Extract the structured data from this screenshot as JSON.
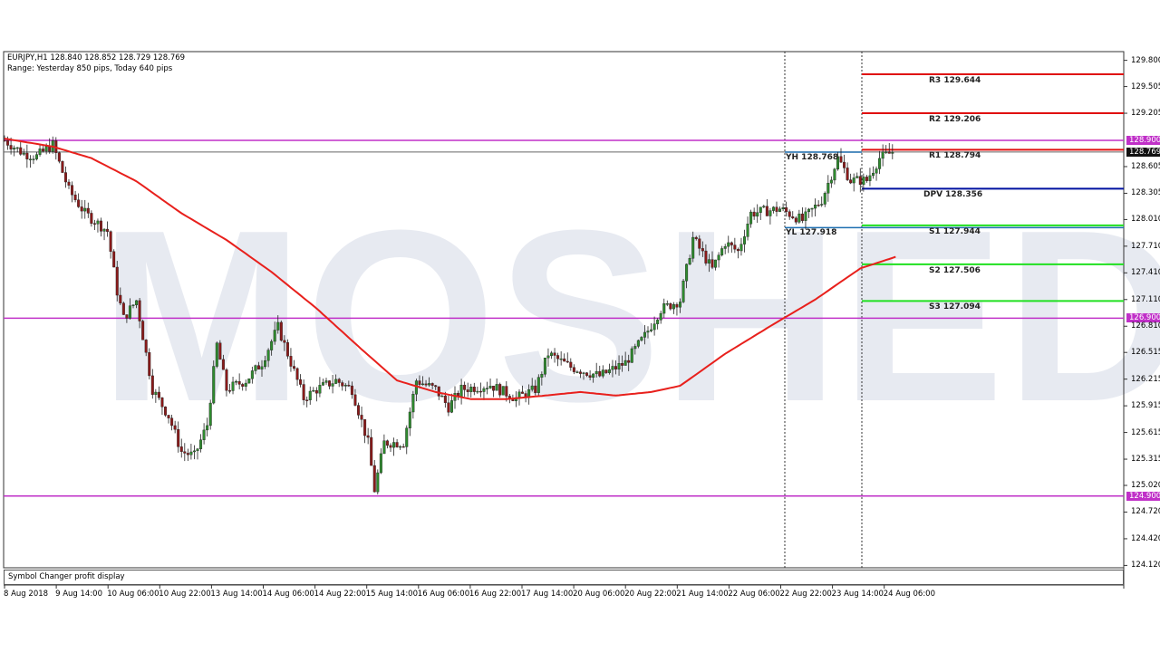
{
  "header": {
    "symbol_line": "EURJPY,H1  128.840 128.852 128.729 128.769",
    "range_line": "Range: Yesterday 850 pips, Today 640 pips"
  },
  "watermark": "MOSHED",
  "status_bar": "Symbol Changer profit display",
  "colors": {
    "bull": "#2e8b2e",
    "bear": "#8b1a1a",
    "ma": "#e8201c",
    "magenta": "#c030c8",
    "resistance": "#e01010",
    "pivot": "#0010a0",
    "support": "#20e020",
    "yl": "#1e6fb0",
    "current": "#444444"
  },
  "chart_data": {
    "type": "candlestick",
    "symbol": "EURJPY",
    "timeframe": "H1",
    "ylim": [
      124.12,
      129.8
    ],
    "y_ticks": [
      "129.800",
      "129.505",
      "129.205",
      "128.605",
      "128.305",
      "128.010",
      "127.710",
      "127.410",
      "127.110",
      "126.810",
      "126.515",
      "126.215",
      "125.915",
      "125.615",
      "125.315",
      "125.020",
      "124.720",
      "124.420",
      "124.120"
    ],
    "x_ticks": [
      "8 Aug 2018",
      "9 Aug 14:00",
      "10 Aug 06:00",
      "10 Aug 22:00",
      "13 Aug 14:00",
      "14 Aug 06:00",
      "14 Aug 22:00",
      "15 Aug 14:00",
      "16 Aug 06:00",
      "16 Aug 22:00",
      "17 Aug 14:00",
      "20 Aug 06:00",
      "20 Aug 22:00",
      "21 Aug 14:00",
      "22 Aug 06:00",
      "22 Aug 22:00",
      "23 Aug 14:00",
      "24 Aug 06:00"
    ],
    "close_path_bar_price": [
      [
        0,
        128.9
      ],
      [
        6,
        128.75
      ],
      [
        10,
        128.72
      ],
      [
        15,
        128.85
      ],
      [
        20,
        128.34
      ],
      [
        25,
        128.08
      ],
      [
        32,
        127.88
      ],
      [
        35,
        127.2
      ],
      [
        37,
        126.9
      ],
      [
        41,
        127.1
      ],
      [
        44,
        126.5
      ],
      [
        46,
        126.1
      ],
      [
        51,
        125.8
      ],
      [
        55,
        125.4
      ],
      [
        59,
        125.35
      ],
      [
        63,
        125.7
      ],
      [
        66,
        126.6
      ],
      [
        69,
        126.1
      ],
      [
        75,
        126.2
      ],
      [
        80,
        126.4
      ],
      [
        85,
        126.8
      ],
      [
        89,
        126.4
      ],
      [
        93,
        126.0
      ],
      [
        97,
        126.1
      ],
      [
        103,
        126.2
      ],
      [
        108,
        126.1
      ],
      [
        113,
        125.5
      ],
      [
        115,
        124.97
      ],
      [
        118,
        125.5
      ],
      [
        124,
        125.5
      ],
      [
        128,
        126.2
      ],
      [
        134,
        126.1
      ],
      [
        138,
        125.9
      ],
      [
        142,
        126.1
      ],
      [
        151,
        126.15
      ],
      [
        159,
        126.0
      ],
      [
        165,
        126.1
      ],
      [
        169,
        126.5
      ],
      [
        176,
        126.35
      ],
      [
        185,
        126.25
      ],
      [
        193,
        126.4
      ],
      [
        199,
        126.7
      ],
      [
        204,
        127.0
      ],
      [
        210,
        127.1
      ],
      [
        214,
        127.8
      ],
      [
        220,
        127.45
      ],
      [
        224,
        127.75
      ],
      [
        228,
        127.65
      ],
      [
        232,
        128.08
      ],
      [
        241,
        128.13
      ],
      [
        248,
        128.0
      ],
      [
        254,
        128.23
      ],
      [
        259,
        128.7
      ],
      [
        263,
        128.45
      ],
      [
        268,
        128.45
      ],
      [
        272,
        128.7
      ],
      [
        276,
        128.769
      ]
    ],
    "moving_average_bar_price": [
      [
        0,
        128.92
      ],
      [
        15,
        128.83
      ],
      [
        27,
        128.7
      ],
      [
        41,
        128.44
      ],
      [
        55,
        128.08
      ],
      [
        69,
        127.78
      ],
      [
        83,
        127.42
      ],
      [
        97,
        127.01
      ],
      [
        111,
        126.55
      ],
      [
        122,
        126.2
      ],
      [
        134,
        126.07
      ],
      [
        145,
        125.99
      ],
      [
        156,
        125.99
      ],
      [
        168,
        126.03
      ],
      [
        179,
        126.07
      ],
      [
        190,
        126.03
      ],
      [
        201,
        126.07
      ],
      [
        210,
        126.14
      ],
      [
        224,
        126.5
      ],
      [
        238,
        126.81
      ],
      [
        252,
        127.11
      ],
      [
        266,
        127.46
      ],
      [
        277,
        127.59
      ]
    ],
    "horizontal_levels": [
      {
        "price": 128.9,
        "label": "128.900"
      },
      {
        "price": 126.9,
        "label": "126.900"
      },
      {
        "price": 124.9,
        "label": "124.900"
      }
    ],
    "current_price": {
      "price": 128.769,
      "label": "128.769"
    },
    "pivots": [
      {
        "name": "R3",
        "price": 129.644,
        "label": "R3 129.644",
        "kind": "resistance"
      },
      {
        "name": "R2",
        "price": 129.206,
        "label": "R2 129.206",
        "kind": "resistance"
      },
      {
        "name": "R1",
        "price": 128.794,
        "label": "R1 128.794",
        "kind": "resistance"
      },
      {
        "name": "DPV",
        "price": 128.356,
        "label": "DPV 128.356",
        "kind": "pivot"
      },
      {
        "name": "S1",
        "price": 127.944,
        "label": "S1 127.944",
        "kind": "support"
      },
      {
        "name": "S2",
        "price": 127.506,
        "label": "S2 127.506",
        "kind": "support"
      },
      {
        "name": "S3",
        "price": 127.094,
        "label": "S3 127.094",
        "kind": "support"
      }
    ],
    "yesterday_high": {
      "price": 128.768,
      "label": "YH 128.768"
    },
    "yesterday_low": {
      "price": 127.918,
      "label": "YL 127.918"
    }
  }
}
